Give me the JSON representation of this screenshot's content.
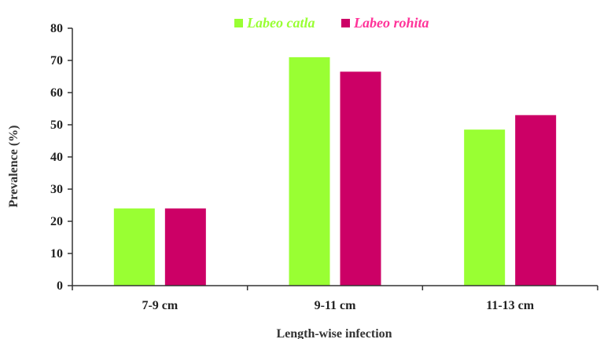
{
  "chart_data": {
    "type": "bar",
    "categories": [
      "7-9 cm",
      "9-11 cm",
      "11-13 cm"
    ],
    "series": [
      {
        "name": "Labeo catla",
        "values": [
          24,
          71,
          48.5
        ],
        "color": "#99ff33"
      },
      {
        "name": "Labeo rohita",
        "values": [
          24,
          66.5,
          53
        ],
        "color": "#cc0066"
      }
    ],
    "title": "",
    "xlabel": "Length-wise infection",
    "ylabel": "Prevalence (%)",
    "ylim": [
      0,
      80
    ],
    "yticks": [
      "0",
      "10",
      "20",
      "30",
      "40",
      "50",
      "60",
      "70",
      "80"
    ],
    "grid": false,
    "legend_position": "top-center",
    "legend_text_colors": [
      "#99ff33",
      "#ff3399"
    ]
  }
}
